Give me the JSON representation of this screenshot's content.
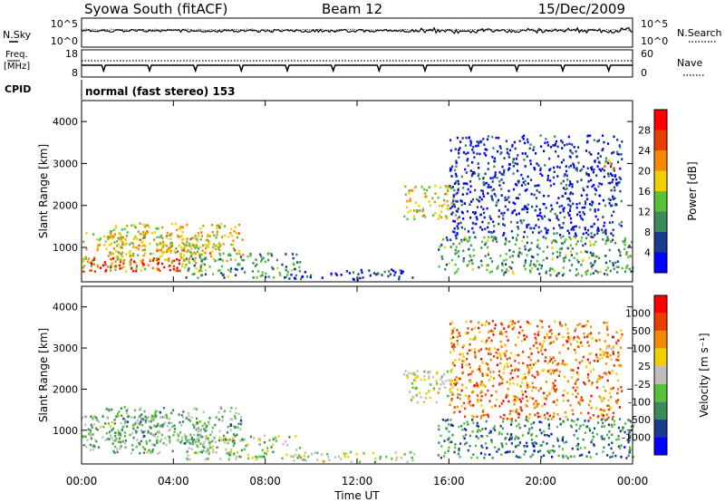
{
  "header": {
    "station": "Syowa South (fitACF)",
    "beam": "Beam 12",
    "date": "15/Dec/2009"
  },
  "top_panels": {
    "nsky_label": "N.Sky",
    "nsky_ticks": [
      "10^5",
      "10^0"
    ],
    "nsearch_label": "N.Search",
    "nsearch_ticks": [
      "10^5",
      "10^0"
    ],
    "freq_label": "Freq.",
    "freq_unit": "[MHz]",
    "freq_ticks": [
      "18",
      "8"
    ],
    "nave_label": "Nave",
    "nave_ticks": [
      "60",
      "0"
    ],
    "cpid_label": "CPID",
    "cpid_value": "normal (fast stereo) 153"
  },
  "chart_data": [
    {
      "type": "heatmap",
      "panel": "power",
      "ylabel": "Slant Range [km]",
      "xlabel": "Time UT",
      "x_ticks": [
        "00:00",
        "04:00",
        "08:00",
        "12:00",
        "16:00",
        "20:00",
        "00:00"
      ],
      "x_range_hours": [
        0,
        24
      ],
      "yticks": [
        1000,
        2000,
        3000,
        4000
      ],
      "ylim": [
        180,
        4500
      ],
      "colorbar": {
        "label": "Power [dB]",
        "ticks": [
          "28",
          "24",
          "20",
          "16",
          "12",
          "8",
          "4"
        ],
        "colors": [
          "#0000ff",
          "#1a3c8f",
          "#3a8c5a",
          "#55c23a",
          "#f0d000",
          "#f58a00",
          "#e84000",
          "#ff0000"
        ],
        "range": [
          0,
          30
        ]
      },
      "regions": [
        {
          "t0": 0.0,
          "t1": 5.5,
          "r0": 450,
          "r1": 1400,
          "level": 0.55
        },
        {
          "t0": 0.0,
          "t1": 4.5,
          "r0": 450,
          "r1": 800,
          "level": 0.9
        },
        {
          "t0": 1.0,
          "t1": 7.0,
          "r0": 700,
          "r1": 1600,
          "level": 0.6
        },
        {
          "t0": 4.5,
          "t1": 9.5,
          "r0": 300,
          "r1": 900,
          "level": 0.35
        },
        {
          "t0": 9.0,
          "t1": 14.5,
          "r0": 250,
          "r1": 500,
          "level": 0.15
        },
        {
          "t0": 14.0,
          "t1": 16.5,
          "r0": 1700,
          "r1": 2500,
          "level": 0.55
        },
        {
          "t0": 15.5,
          "t1": 24.0,
          "r0": 350,
          "r1": 1300,
          "level": 0.35
        },
        {
          "t0": 16.0,
          "t1": 23.5,
          "r0": 1300,
          "r1": 3700,
          "level": 0.12
        },
        {
          "t0": 22.5,
          "t1": 23.2,
          "r0": 2850,
          "r1": 3100,
          "level": 0.7
        }
      ]
    },
    {
      "type": "heatmap",
      "panel": "velocity",
      "ylabel": "Slant Range [km]",
      "xlabel": "Time UT",
      "x_ticks": [
        "00:00",
        "04:00",
        "08:00",
        "12:00",
        "16:00",
        "20:00",
        "00:00"
      ],
      "x_range_hours": [
        0,
        24
      ],
      "yticks": [
        1000,
        2000,
        3000,
        4000
      ],
      "ylim": [
        180,
        4500
      ],
      "colorbar": {
        "label": "Velocity [m s⁻¹]",
        "ticks": [
          "1000",
          "500",
          "100",
          "25",
          "-25",
          "-100",
          "-500",
          "-1000"
        ],
        "colors": [
          "#0000ff",
          "#1a3c8f",
          "#3a8c5a",
          "#55c23a",
          "#bebebe",
          "#f0d000",
          "#f58a00",
          "#e84000",
          "#ff0000"
        ],
        "range": [
          -1000,
          1000
        ]
      },
      "regions": [
        {
          "t0": 0.0,
          "t1": 5.5,
          "r0": 450,
          "r1": 1400,
          "level": 0.4
        },
        {
          "t0": 1.0,
          "t1": 7.0,
          "r0": 700,
          "r1": 1600,
          "level": 0.38
        },
        {
          "t0": 4.5,
          "t1": 9.5,
          "r0": 300,
          "r1": 900,
          "level": 0.45
        },
        {
          "t0": 9.0,
          "t1": 14.5,
          "r0": 250,
          "r1": 500,
          "level": 0.5
        },
        {
          "t0": 14.0,
          "t1": 16.5,
          "r0": 1700,
          "r1": 2500,
          "level": 0.5
        },
        {
          "t0": 15.5,
          "t1": 24.0,
          "r0": 350,
          "r1": 1300,
          "level": 0.25
        },
        {
          "t0": 16.0,
          "t1": 23.5,
          "r0": 1300,
          "r1": 3700,
          "level": 0.75
        },
        {
          "t0": 22.5,
          "t1": 23.2,
          "r0": 2850,
          "r1": 3100,
          "level": 0.6
        }
      ]
    }
  ]
}
